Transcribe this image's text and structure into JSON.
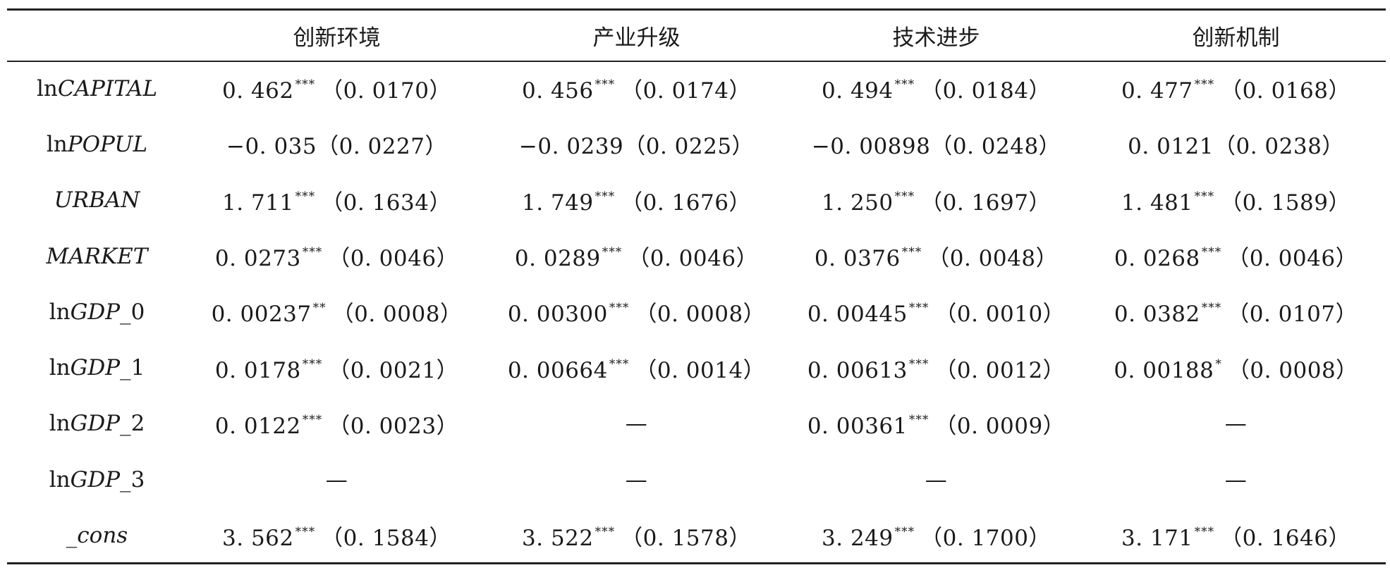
{
  "table": {
    "columns": [
      "创新环境",
      "产业升级",
      "技术进步",
      "创新机制"
    ],
    "rows": [
      {
        "label_prefix": "ln",
        "label_var": "CAPITAL",
        "cells": [
          {
            "value": "0. 462",
            "stars": "***",
            "se": "（0. 0170）"
          },
          {
            "value": "0. 456",
            "stars": "***",
            "se": "（0. 0174）"
          },
          {
            "value": "0. 494",
            "stars": "***",
            "se": "（0. 0184）"
          },
          {
            "value": "0. 477",
            "stars": "***",
            "se": "（0. 0168）"
          }
        ]
      },
      {
        "label_prefix": "ln",
        "label_var": "POPUL",
        "cells": [
          {
            "value": "−0. 035",
            "stars": "",
            "se": "（0. 0227）"
          },
          {
            "value": "−0. 0239",
            "stars": "",
            "se": "（0. 0225）"
          },
          {
            "value": "−0. 00898",
            "stars": "",
            "se": "（0. 0248）"
          },
          {
            "value": "0. 0121",
            "stars": "",
            "se": "（0. 0238）"
          }
        ]
      },
      {
        "label_prefix": "",
        "label_var": "URBAN",
        "cells": [
          {
            "value": "1. 711",
            "stars": "***",
            "se": "（0. 1634）"
          },
          {
            "value": "1. 749",
            "stars": "***",
            "se": "（0. 1676）"
          },
          {
            "value": "1. 250",
            "stars": "***",
            "se": "（0. 1697）"
          },
          {
            "value": "1. 481",
            "stars": "***",
            "se": "（0. 1589）"
          }
        ]
      },
      {
        "label_prefix": "",
        "label_var": "MARKET",
        "cells": [
          {
            "value": "0. 0273",
            "stars": "***",
            "se": "（0. 0046）"
          },
          {
            "value": "0. 0289",
            "stars": "***",
            "se": "（0. 0046）"
          },
          {
            "value": "0. 0376",
            "stars": "***",
            "se": "（0. 0048）"
          },
          {
            "value": "0. 0268",
            "stars": "***",
            "se": "（0. 0046）"
          }
        ]
      },
      {
        "label_prefix": "ln",
        "label_var": "GDP_",
        "label_suffix": "0",
        "cells": [
          {
            "value": "0. 00237",
            "stars": "**",
            "se": "（0. 0008）"
          },
          {
            "value": "0. 00300",
            "stars": "***",
            "se": "（0. 0008）"
          },
          {
            "value": "0. 00445",
            "stars": "***",
            "se": "（0. 0010）"
          },
          {
            "value": "0. 0382",
            "stars": "***",
            "se": "（0. 0107）"
          }
        ]
      },
      {
        "label_prefix": "ln",
        "label_var": "GDP_",
        "label_suffix": "1",
        "cells": [
          {
            "value": "0. 0178",
            "stars": "***",
            "se": "（0. 0021）"
          },
          {
            "value": "0. 00664",
            "stars": "***",
            "se": "（0. 0014）"
          },
          {
            "value": "0. 00613",
            "stars": "***",
            "se": "（0. 0012）"
          },
          {
            "value": "0. 00188",
            "stars": "*",
            "se": "（0. 0008）"
          }
        ]
      },
      {
        "label_prefix": "ln",
        "label_var": "GDP_",
        "label_suffix": "2",
        "cells": [
          {
            "value": "0. 0122",
            "stars": "***",
            "se": "（0. 0023）"
          },
          {
            "value": "—",
            "stars": "",
            "se": ""
          },
          {
            "value": "0. 00361",
            "stars": "***",
            "se": "（0. 0009）"
          },
          {
            "value": "—",
            "stars": "",
            "se": ""
          }
        ]
      },
      {
        "label_prefix": "ln",
        "label_var": "GDP_",
        "label_suffix": "3",
        "cells": [
          {
            "value": "—",
            "stars": "",
            "se": ""
          },
          {
            "value": "—",
            "stars": "",
            "se": ""
          },
          {
            "value": "—",
            "stars": "",
            "se": ""
          },
          {
            "value": "—",
            "stars": "",
            "se": ""
          }
        ]
      },
      {
        "label_prefix": "",
        "label_var": "_cons",
        "cells": [
          {
            "value": "3. 562",
            "stars": "***",
            "se": "（0. 1584）"
          },
          {
            "value": "3. 522",
            "stars": "***",
            "se": "（0. 1578）"
          },
          {
            "value": "3. 249",
            "stars": "***",
            "se": "（0. 1700）"
          },
          {
            "value": "3. 171",
            "stars": "***",
            "se": "（0. 1646）"
          }
        ]
      }
    ]
  }
}
